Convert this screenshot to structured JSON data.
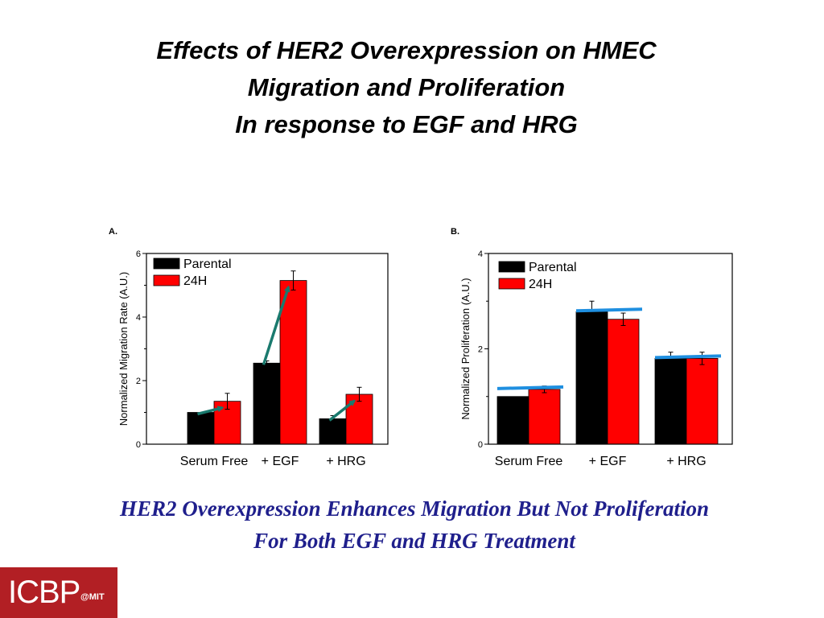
{
  "title": {
    "lines": [
      "Effects of HER2 Overexpression on HMEC",
      "Migration and Proliferation",
      "In response to EGF and HRG"
    ]
  },
  "caption": {
    "lines": [
      "HER2 Overexpression Enhances Migration But Not Proliferation",
      "For Both EGF and HRG Treatment"
    ]
  },
  "logo": {
    "text": "ICBP",
    "sub": "@MIT"
  },
  "chart_data": [
    {
      "type": "bar",
      "panel_label": "A.",
      "categories": [
        "Serum Free",
        "+ EGF",
        "+ HRG"
      ],
      "ylabel": "Normalized Migration Rate (A.U.)",
      "ylim": [
        0,
        6
      ],
      "yticks": [
        "0",
        "2",
        "4",
        "6"
      ],
      "legend_position": "top-left",
      "series": [
        {
          "name": "Parental",
          "color": "#000000",
          "values": [
            1.0,
            2.55,
            0.8
          ],
          "errors": [
            0.0,
            0.07,
            0.1
          ]
        },
        {
          "name": "24H",
          "color": "#ff0000",
          "values": [
            1.35,
            5.15,
            1.57
          ],
          "errors": [
            0.25,
            0.3,
            0.22
          ]
        }
      ],
      "annotation": "arrows",
      "annotation_color": "#1a7a6e"
    },
    {
      "type": "bar",
      "panel_label": "B.",
      "categories": [
        "Serum Free",
        "+ EGF",
        "+ HRG"
      ],
      "ylabel": "Normalized Proliferation (A.U.)",
      "ylim": [
        0,
        4
      ],
      "yticks": [
        "0",
        "2",
        "4"
      ],
      "legend_position": "top-left",
      "series": [
        {
          "name": "Parental",
          "color": "#000000",
          "values": [
            1.0,
            2.78,
            1.8
          ],
          "errors": [
            0.0,
            0.22,
            0.13
          ]
        },
        {
          "name": "24H",
          "color": "#ff0000",
          "values": [
            1.15,
            2.62,
            1.8
          ],
          "errors": [
            0.07,
            0.13,
            0.13
          ]
        }
      ],
      "annotation": "lines",
      "annotation_color": "#1f8fe0"
    }
  ]
}
